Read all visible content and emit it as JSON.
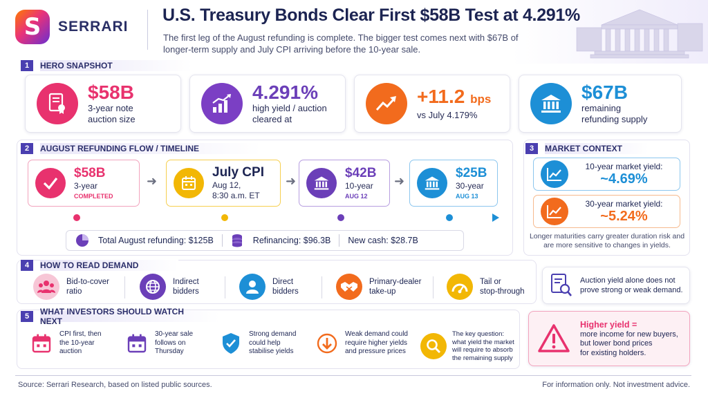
{
  "brand": {
    "name": "SERRARI",
    "logo_letter": "S"
  },
  "header": {
    "title": "U.S. Treasury Bonds Clear First $58B Test at 4.291%",
    "subtitle": "The first leg of the August refunding is complete. The bigger test comes next with $67B of longer-term supply and July CPI arriving before the 10-year sale."
  },
  "sections": {
    "hero": {
      "num": "1",
      "label": "HERO SNAPSHOT"
    },
    "flow": {
      "num": "2",
      "label": "AUGUST REFUNDING FLOW / TIMELINE"
    },
    "market": {
      "num": "3",
      "label": "MARKET CONTEXT"
    },
    "demand": {
      "num": "4",
      "label": "HOW TO READ DEMAND"
    },
    "watch": {
      "num": "5",
      "label": "WHAT INVESTORS SHOULD WATCH NEXT"
    }
  },
  "hero_cards": [
    {
      "value": "$58B",
      "unit": "",
      "label_1": "3-year note",
      "label_2": "auction size",
      "color": "#e8326e",
      "icon": "document-certificate-icon"
    },
    {
      "value": "4.291%",
      "unit": "",
      "label_1": "high yield / auction",
      "label_2": "cleared at",
      "color": "#7b3fc4",
      "icon": "bar-chart-up-icon"
    },
    {
      "value": "+11.2",
      "unit": "bps",
      "label_1": "vs July 4.179%",
      "label_2": "",
      "color": "#f26b1d",
      "icon": "trend-up-icon"
    },
    {
      "value": "$67B",
      "unit": "",
      "label_1": "remaining",
      "label_2": "refunding supply",
      "color": "#1d8fd6",
      "icon": "bank-icon"
    }
  ],
  "timeline": [
    {
      "value": "$58B",
      "sub_1": "3-year",
      "sub_2": "",
      "tag": "COMPLETED",
      "color": "#e8326e",
      "icon": "check-icon"
    },
    {
      "value": "July CPI",
      "sub_1": "Aug 12,",
      "sub_2": "8:30 a.m. ET",
      "tag": "",
      "color": "#f2b705",
      "icon": "calendar-icon"
    },
    {
      "value": "$42B",
      "sub_1": "10-year",
      "sub_2": "",
      "tag": "AUG 12",
      "color": "#6b3fb8",
      "icon": "bank-icon"
    },
    {
      "value": "$25B",
      "sub_1": "30-year",
      "sub_2": "",
      "tag": "AUG 13",
      "color": "#1d8fd6",
      "icon": "bank-icon"
    }
  ],
  "totals": [
    {
      "label": "Total August refunding: $125B",
      "icon": "pie-icon"
    },
    {
      "label": "Refinancing: $96.3B",
      "icon": "coins-icon"
    },
    {
      "label": "New cash: $28.7B",
      "icon": ""
    }
  ],
  "market": {
    "items": [
      {
        "label": "10-year market yield:",
        "value": "~4.69%",
        "color": "#1d8fd6",
        "icon": "line-chart-icon"
      },
      {
        "label": "30-year market yield:",
        "value": "~5.24%",
        "color": "#f26b1d",
        "icon": "line-chart-icon"
      }
    ],
    "note": "Longer maturities carry greater duration risk and are more sensitive to changes in yields."
  },
  "demand": {
    "items": [
      {
        "line_1": "Bid-to-cover",
        "line_2": "ratio",
        "color": "#e8326e",
        "icon": "people-icon"
      },
      {
        "line_1": "Indirect",
        "line_2": "bidders",
        "color": "#6b3fb8",
        "icon": "globe-icon"
      },
      {
        "line_1": "Direct",
        "line_2": "bidders",
        "color": "#1d8fd6",
        "icon": "person-icon"
      },
      {
        "line_1": "Primary-dealer",
        "line_2": "take-up",
        "color": "#f26b1d",
        "icon": "handshake-icon"
      },
      {
        "line_1": "Tail or",
        "line_2": "stop-through",
        "color": "#f2b705",
        "icon": "gauge-icon"
      }
    ],
    "note_1": "Auction yield alone does not",
    "note_2": "prove strong or weak demand."
  },
  "watch": {
    "items": [
      {
        "line_1": "CPI first, then",
        "line_2": "the 10-year",
        "line_3": "auction",
        "line_4": "",
        "color": "#e8326e",
        "icon": "calendar-icon"
      },
      {
        "line_1": "30-year sale",
        "line_2": "follows on",
        "line_3": "Thursday",
        "line_4": "",
        "color": "#6b3fb8",
        "icon": "calendar-icon"
      },
      {
        "line_1": "Strong demand",
        "line_2": "could help",
        "line_3": "stabilise yields",
        "line_4": "",
        "color": "#1d8fd6",
        "icon": "shield-check-icon"
      },
      {
        "line_1": "Weak demand could",
        "line_2": "require higher yields",
        "line_3": "and pressure prices",
        "line_4": "",
        "color": "#f26b1d",
        "icon": "arrow-down-icon"
      },
      {
        "line_1": "The key question:",
        "line_2": "what yield the market",
        "line_3": "will require to absorb",
        "line_4": "the remaining supply",
        "color": "#f2b705",
        "icon": "search-icon"
      }
    ],
    "alert": {
      "title": "Higher yield =",
      "line_1": "more income for new buyers,",
      "line_2": "but lower bond prices",
      "line_3": "for existing holders.",
      "icon": "warning-icon"
    }
  },
  "footer": {
    "source": "Source: Serrari Research, based on listed public sources.",
    "disclaimer": "For information only. Not investment advice."
  }
}
